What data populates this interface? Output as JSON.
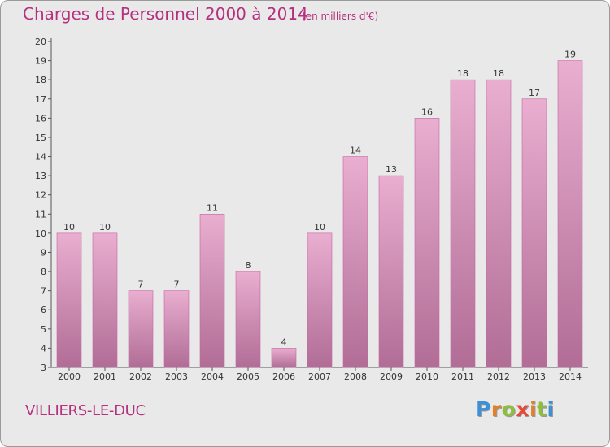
{
  "header": {
    "title": "Charges de Personnel 2000 à 2014",
    "subtitle": "(en milliers d'€)"
  },
  "footer": {
    "place": "VILLIERS-LE-DUC",
    "brand": "Proxiti",
    "brand_letter_colors": [
      "#3d8fd6",
      "#e0802b",
      "#8bbf3c",
      "#e64a3a",
      "#e0802b",
      "#8bbf3c",
      "#3d8fd6"
    ]
  },
  "chart_data": {
    "type": "bar",
    "title": "Charges de Personnel 2000 à 2014",
    "subtitle": "(en milliers d'€)",
    "categories": [
      "2000",
      "2001",
      "2002",
      "2003",
      "2004",
      "2005",
      "2006",
      "2007",
      "2008",
      "2009",
      "2010",
      "2011",
      "2012",
      "2013",
      "2014"
    ],
    "values": [
      10,
      10,
      7,
      7,
      11,
      8,
      4,
      10,
      14,
      13,
      16,
      18,
      18,
      17,
      19
    ],
    "ylim": [
      3,
      20
    ],
    "yticks": [
      3,
      4,
      5,
      6,
      7,
      8,
      9,
      10,
      11,
      12,
      13,
      14,
      15,
      16,
      17,
      18,
      19,
      20
    ],
    "grid": false,
    "data_labels": true,
    "colors": {
      "bar_top": "#e9aed0",
      "bar_bottom": "#b16d96",
      "bar_edge": "#c6659f",
      "background": "#e9e9e9",
      "title": "#b5307e"
    }
  }
}
